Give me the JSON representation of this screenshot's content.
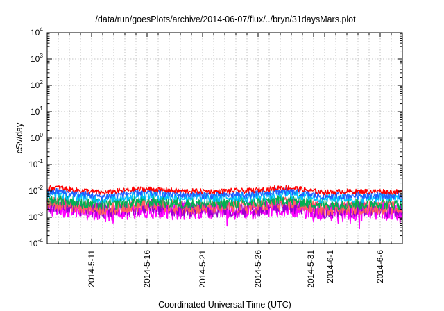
{
  "chart_data": {
    "type": "line",
    "title": "/data/run/goesPlots/archive/2014-06-07/flux/../bryn/31daysMars.plot",
    "xlabel": "Coordinated Universal Time (UTC)",
    "ylabel": "cSv/day",
    "y_scale": "log",
    "ylim": [
      0.0001,
      10000
    ],
    "y_ticks": [
      {
        "base": "10",
        "exp": "-4",
        "value": 0.0001
      },
      {
        "base": "10",
        "exp": "-3",
        "value": 0.001
      },
      {
        "base": "10",
        "exp": "-2",
        "value": 0.01
      },
      {
        "base": "10",
        "exp": "-1",
        "value": 0.1
      },
      {
        "base": "10",
        "exp": "0",
        "value": 1
      },
      {
        "base": "10",
        "exp": "1",
        "value": 10
      },
      {
        "base": "10",
        "exp": "2",
        "value": 100
      },
      {
        "base": "10",
        "exp": "3",
        "value": 1000
      },
      {
        "base": "10",
        "exp": "4",
        "value": 10000
      }
    ],
    "xlim": [
      "2014-05-07",
      "2014-06-08"
    ],
    "x_ticks": [
      {
        "label": "2014-5-11",
        "date": "2014-05-11"
      },
      {
        "label": "2014-5-16",
        "date": "2014-05-16"
      },
      {
        "label": "2014-5-21",
        "date": "2014-05-21"
      },
      {
        "label": "2014-5-26",
        "date": "2014-05-26"
      },
      {
        "label": "2014-5-31",
        "date": "2014-05-31"
      },
      {
        "label": "2014-6-1",
        "date": "2014-06-01"
      },
      {
        "label": "2014-6-6",
        "date": "2014-06-06"
      }
    ],
    "grid": true,
    "legend": "none",
    "x": [
      "2014-05-07",
      "2014-05-08",
      "2014-05-09",
      "2014-05-10",
      "2014-05-11",
      "2014-05-12",
      "2014-05-13",
      "2014-05-14",
      "2014-05-15",
      "2014-05-16",
      "2014-05-17",
      "2014-05-18",
      "2014-05-19",
      "2014-05-20",
      "2014-05-21",
      "2014-05-22",
      "2014-05-23",
      "2014-05-24",
      "2014-05-25",
      "2014-05-26",
      "2014-05-27",
      "2014-05-28",
      "2014-05-29",
      "2014-05-30",
      "2014-05-31",
      "2014-06-01",
      "2014-06-02",
      "2014-06-03",
      "2014-06-04",
      "2014-06-05",
      "2014-06-06",
      "2014-06-07",
      "2014-06-08"
    ],
    "series": [
      {
        "color": "#ff0000",
        "values": [
          0.0125,
          0.0135,
          0.0115,
          0.0105,
          0.0095,
          0.0085,
          0.0095,
          0.0105,
          0.0115,
          0.0118,
          0.0112,
          0.0105,
          0.01,
          0.0098,
          0.0096,
          0.0094,
          0.0098,
          0.0102,
          0.01,
          0.0108,
          0.0118,
          0.0135,
          0.013,
          0.0115,
          0.0098,
          0.0088,
          0.0092,
          0.0095,
          0.0094,
          0.0096,
          0.0098,
          0.0092,
          0.009
        ]
      },
      {
        "color": "#1f5fff",
        "values": [
          0.0088,
          0.0095,
          0.0082,
          0.0075,
          0.0068,
          0.006,
          0.0068,
          0.0076,
          0.0084,
          0.0086,
          0.0081,
          0.0076,
          0.0072,
          0.007,
          0.0069,
          0.0067,
          0.007,
          0.0073,
          0.0071,
          0.0077,
          0.0085,
          0.0097,
          0.0093,
          0.0082,
          0.007,
          0.0063,
          0.0066,
          0.0068,
          0.0067,
          0.0069,
          0.007,
          0.0066,
          0.0064
        ]
      },
      {
        "color": "#00c0ff",
        "values": [
          0.007,
          0.0076,
          0.0066,
          0.006,
          0.0054,
          0.0048,
          0.0054,
          0.0061,
          0.0067,
          0.0069,
          0.0065,
          0.0061,
          0.0058,
          0.0056,
          0.0055,
          0.0054,
          0.0056,
          0.0058,
          0.0057,
          0.0062,
          0.0068,
          0.0078,
          0.0074,
          0.0066,
          0.0056,
          0.005,
          0.0053,
          0.0054,
          0.0054,
          0.0055,
          0.0056,
          0.0053,
          0.0051
        ]
      },
      {
        "color": "#00b050",
        "values": [
          0.0042,
          0.0046,
          0.004,
          0.0036,
          0.0032,
          0.0029,
          0.0032,
          0.0037,
          0.004,
          0.0041,
          0.0039,
          0.0036,
          0.0034,
          0.0033,
          0.0033,
          0.0032,
          0.0034,
          0.0035,
          0.0034,
          0.0037,
          0.0041,
          0.0047,
          0.0045,
          0.004,
          0.0034,
          0.003,
          0.0032,
          0.0033,
          0.0032,
          0.0033,
          0.0034,
          0.0032,
          0.0031
        ]
      },
      {
        "color": "#ff6060",
        "values": [
          0.003,
          0.0033,
          0.0028,
          0.0026,
          0.0023,
          0.0021,
          0.0023,
          0.0026,
          0.0028,
          0.0029,
          0.0028,
          0.0026,
          0.0024,
          0.0024,
          0.0023,
          0.0023,
          0.0024,
          0.0025,
          0.0024,
          0.0026,
          0.0029,
          0.0033,
          0.0032,
          0.0028,
          0.0024,
          0.0021,
          0.0022,
          0.0023,
          0.0023,
          0.0023,
          0.0024,
          0.0022,
          0.0022
        ]
      },
      {
        "color": "#9900cc",
        "values": [
          0.0026,
          0.0028,
          0.0024,
          0.0022,
          0.002,
          0.0018,
          0.002,
          0.0022,
          0.0024,
          0.0025,
          0.0024,
          0.0022,
          0.0021,
          0.002,
          0.002,
          0.0019,
          0.002,
          0.0021,
          0.0021,
          0.0022,
          0.0025,
          0.0028,
          0.0027,
          0.0024,
          0.002,
          0.0018,
          0.0019,
          0.002,
          0.0019,
          0.002,
          0.002,
          0.0019,
          0.0018
        ]
      },
      {
        "color": "#ff00ff",
        "values": [
          0.0022,
          0.0024,
          0.002,
          0.0018,
          0.0016,
          0.0015,
          0.0016,
          0.0018,
          0.002,
          0.0021,
          0.002,
          0.0018,
          0.0017,
          0.0017,
          0.0016,
          0.0016,
          0.0017,
          0.0018,
          0.0017,
          0.0019,
          0.0021,
          0.0024,
          0.0023,
          0.002,
          0.0017,
          0.0015,
          0.0016,
          0.0016,
          0.0016,
          0.0017,
          0.0017,
          0.0016,
          0.0015
        ]
      }
    ]
  }
}
